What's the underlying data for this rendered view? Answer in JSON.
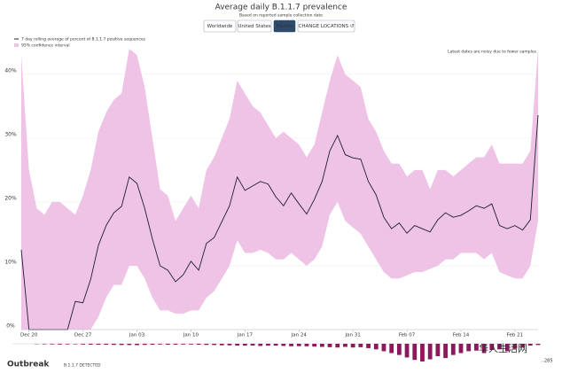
{
  "brand": "Outbreak",
  "watermark": "华人生活网",
  "header": {
    "title": "Average daily B.1.1.7 prevalence",
    "subtitle": "Based on reported sample collection date",
    "buttons": [
      "Worldwide",
      "United States",
      "Florida",
      "CHANGE LOCATIONS ↺"
    ],
    "active": "Florida"
  },
  "chart_data": [
    {
      "type": "line",
      "annotation": "Latest dates are noisy due to fewer samples",
      "categories": [
        null,
        "Dec 20",
        null,
        null,
        null,
        null,
        null,
        null,
        "Dec 27",
        null,
        null,
        null,
        null,
        null,
        null,
        "Jan 03",
        null,
        null,
        null,
        null,
        null,
        null,
        "Jan 10",
        null,
        null,
        null,
        null,
        null,
        null,
        "Jan 17",
        null,
        null,
        null,
        null,
        null,
        null,
        "Jan 24",
        null,
        null,
        null,
        null,
        null,
        null,
        "Jan 31",
        null,
        null,
        null,
        null,
        null,
        null,
        "Feb 07",
        null,
        null,
        null,
        null,
        null,
        null,
        "Feb 14",
        null,
        null,
        null,
        null,
        null,
        null,
        "Feb 21",
        null,
        null,
        null
      ],
      "series": [
        {
          "name": "7 day rolling average of percent of B.1.1.7 positive sequences",
          "color": "#1f1f2e",
          "values": [
            12.5,
            0,
            0,
            0,
            0,
            0,
            0,
            4.4,
            4.2,
            7.9,
            13.2,
            16.3,
            18.3,
            19.3,
            23.9,
            22.9,
            19,
            14.2,
            10,
            9.3,
            7.5,
            8.6,
            10.7,
            9.3,
            13.5,
            14.4,
            16.9,
            19.4,
            23.9,
            21.8,
            22.5,
            23.2,
            22.8,
            20.8,
            19.4,
            21.4,
            19.7,
            18.1,
            20.4,
            23.2,
            28,
            30.4,
            27.4,
            26.9,
            26.7,
            23.2,
            21.1,
            17.6,
            15.8,
            16.7,
            15.1,
            16.3,
            15.8,
            15.3,
            17.2,
            18.3,
            17.6,
            17.9,
            18.6,
            19.4,
            19,
            19.7,
            16.3,
            15.8,
            16.3,
            15.6,
            17.2,
            33.6
          ]
        }
      ],
      "band": {
        "name": "95% confidence interval",
        "color": "#efc3e6",
        "upper": [
          43,
          25,
          19,
          18,
          20,
          20,
          19,
          18,
          21,
          25,
          31,
          34,
          36,
          37,
          44,
          43,
          38,
          30,
          22,
          21,
          17,
          19,
          21,
          19,
          25,
          27,
          30,
          33,
          39,
          37,
          35,
          34,
          32,
          30,
          31,
          30,
          29,
          27,
          29,
          34,
          39,
          43,
          40,
          39,
          38,
          33,
          31,
          28,
          26,
          26,
          24,
          25,
          25,
          22,
          25,
          25,
          24,
          25,
          26,
          27,
          27,
          29,
          26,
          26,
          26,
          26,
          28,
          44
        ],
        "lower": [
          0,
          0,
          0,
          0,
          0,
          0,
          0,
          0,
          0,
          0,
          2,
          5,
          7,
          7,
          10,
          10,
          8,
          5,
          3,
          3,
          2.5,
          2.5,
          3,
          3,
          5,
          6,
          8,
          10,
          14,
          12,
          12,
          12.5,
          12,
          11,
          11,
          12,
          11,
          10,
          11,
          13,
          18,
          20,
          17,
          16,
          15,
          13,
          11,
          9,
          8,
          8,
          8.5,
          9,
          9,
          9.5,
          10,
          11,
          11,
          12,
          12,
          12,
          11,
          12,
          9,
          8.5,
          8,
          8,
          10,
          17
        ]
      },
      "ylim": [
        0,
        44
      ],
      "yticks": [
        {
          "value": 0,
          "label": "0%"
        },
        {
          "value": 10,
          "label": "10%"
        },
        {
          "value": 20,
          "label": "20%"
        },
        {
          "value": 30,
          "label": "30%"
        },
        {
          "value": 40,
          "label": "40%"
        }
      ],
      "grid": true
    },
    {
      "type": "bar",
      "title": "B.1.1.7 DETECTED",
      "color": "#8b1a5d",
      "ylim": [
        0,
        285
      ],
      "yticks": [
        285
      ],
      "values": [
        0,
        0,
        5,
        8,
        10,
        12,
        10,
        8,
        12,
        14,
        15,
        15,
        18,
        20,
        20,
        22,
        18,
        15,
        12,
        15,
        14,
        12,
        12,
        15,
        18,
        20,
        25,
        25,
        30,
        30,
        28,
        35,
        30,
        30,
        35,
        40,
        38,
        40,
        45,
        50,
        55,
        60,
        50,
        60,
        55,
        70,
        90,
        120,
        150,
        180,
        220,
        260,
        285,
        250,
        200,
        230,
        180,
        150,
        120,
        110,
        150,
        100,
        90,
        120,
        80,
        60,
        30,
        20
      ]
    }
  ]
}
